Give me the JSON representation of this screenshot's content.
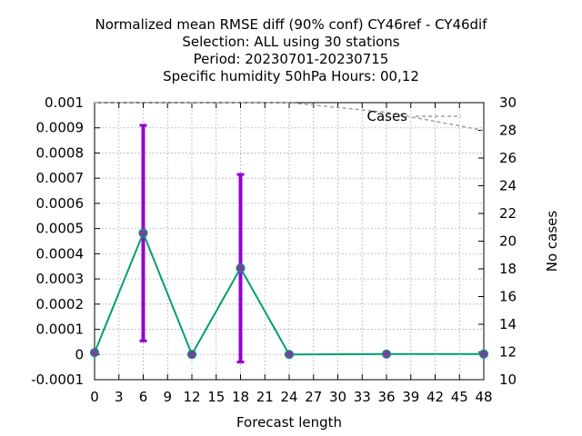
{
  "chart_data": {
    "type": "line",
    "title_lines": [
      "Normalized mean RMSE diff (90% conf) CY46ref - CY46dif",
      "Selection: ALL using    30 stations",
      "Period: 20230701-20230715",
      "Specific humidity 50hPa   Hours:  00,12"
    ],
    "xlabel": "Forecast length",
    "y2label": "No cases",
    "xlim": [
      0,
      48
    ],
    "ylim": [
      -0.0001,
      0.001
    ],
    "y2lim": [
      10,
      30
    ],
    "xticks": [
      "0",
      "3",
      "6",
      "9",
      "12",
      "15",
      "18",
      "21",
      "24",
      "27",
      "30",
      "33",
      "36",
      "39",
      "42",
      "45",
      "48"
    ],
    "yticks": [
      "-0.0001",
      "0",
      "0.0001",
      "0.0002",
      "0.0003",
      "0.0004",
      "0.0005",
      "0.0006",
      "0.0007",
      "0.0008",
      "0.0009",
      "0.001"
    ],
    "y2ticks": [
      "10",
      "12",
      "14",
      "16",
      "18",
      "20",
      "22",
      "24",
      "26",
      "28",
      "30"
    ],
    "grid": true,
    "legend_position": "top-right",
    "colors": {
      "main_line": "#009e73",
      "error_bar": "#9400d3",
      "marker": "#7a3fa0",
      "cases_line": "#a0a0a0",
      "grid": "#a0a0a0"
    },
    "series": [
      {
        "x": [
          0,
          6,
          12,
          18,
          24,
          36,
          48
        ],
        "values": [
          7.5e-06,
          0.000482,
          5e-07,
          0.000343,
          3e-07,
          1.7e-06,
          1.8e-06
        ]
      }
    ],
    "error_bars": [
      {
        "x": 6,
        "low": 5.4e-05,
        "high": 0.00091
      },
      {
        "x": 18,
        "low": -3e-05,
        "high": 0.000715
      }
    ],
    "cases": {
      "name": "Cases",
      "x": [
        0,
        6,
        12,
        18,
        24,
        36,
        48
      ],
      "values": [
        30,
        30,
        30,
        30,
        30,
        29.3,
        28.0
      ]
    }
  }
}
